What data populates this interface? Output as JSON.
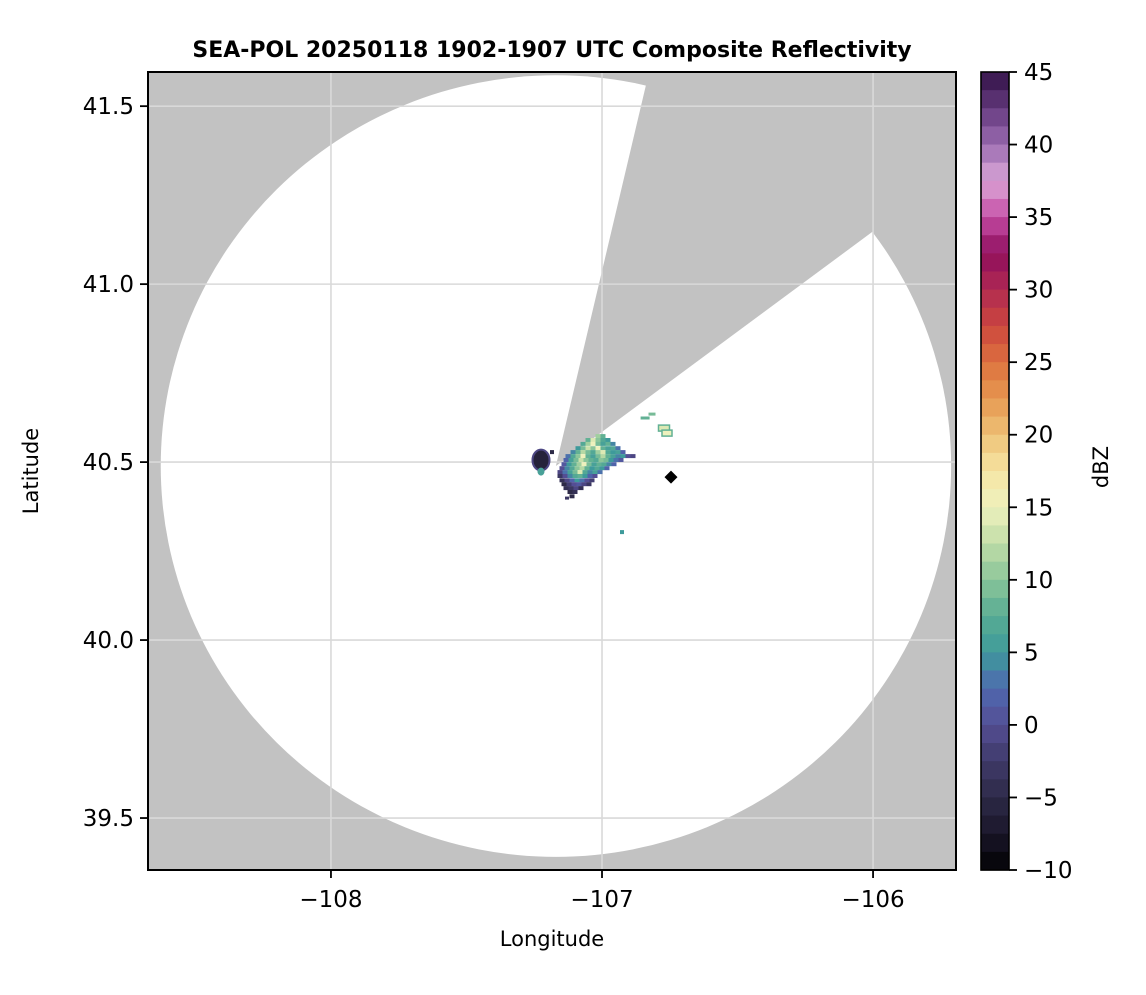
{
  "title": "SEA-POL 20250118 1902-1907 UTC Composite Reflectivity",
  "axes": {
    "xlabel": "Longitude",
    "ylabel": "Latitude",
    "lon_min": -108.675,
    "lon_max": -105.694,
    "lat_min": 39.354,
    "lat_max": 41.596,
    "xticks": [
      {
        "label": "−108",
        "value": -108
      },
      {
        "label": "−107",
        "value": -107
      },
      {
        "label": "−106",
        "value": -106
      }
    ],
    "yticks": [
      {
        "label": "41.5",
        "value": 41.5
      },
      {
        "label": "41.0",
        "value": 41.0
      },
      {
        "label": "40.5",
        "value": 40.5
      },
      {
        "label": "40.0",
        "value": 40.0
      },
      {
        "label": "39.5",
        "value": 39.5
      }
    ]
  },
  "colors": {
    "outside_range": "#c2c2c2",
    "blocked_sector": "#c2c2c2",
    "coverage": "#ffffff",
    "grid": "#d9d9d9",
    "frame": "#000000",
    "marker": "#000000"
  },
  "chart_data": {
    "type": "heatmap",
    "description": "Radar composite reflectivity PPI on lon/lat map",
    "radar": {
      "name": "SEA-POL",
      "lon": -107.17,
      "lat": 40.489,
      "range_lon_deg": 1.458,
      "range_lat_deg": 1.098
    },
    "blocked_sector_azimuth_deg": [
      13.3,
      53.5
    ],
    "site_marker": {
      "shape": "diamond",
      "lon": -106.7454,
      "lat": 40.4579
    },
    "echo_cell_step_lon": 0.01845,
    "echo_rows": [
      {
        "lat": 40.573,
        "lon0": -107.0148,
        "z": [
          11,
          8
        ]
      },
      {
        "lat": 40.562,
        "lon0": -107.0517,
        "z": [
          8,
          14,
          10,
          7,
          5
        ]
      },
      {
        "lat": 40.551,
        "lon0": -107.0701,
        "z": [
          7,
          11,
          15,
          9,
          6,
          8,
          4
        ]
      },
      {
        "lat": 40.539,
        "lon0": -107.0886,
        "z": [
          5,
          9,
          13,
          10,
          15,
          8,
          6,
          7,
          3
        ]
      },
      {
        "lat": 40.528,
        "lon0": -107.107,
        "z": [
          4,
          8,
          12,
          9,
          7,
          11,
          14,
          7,
          5,
          6,
          2
        ]
      },
      {
        "lat": 40.517,
        "lon0": -107.1255,
        "z": [
          3,
          7,
          10,
          15,
          8,
          6,
          9,
          12,
          8,
          6,
          4,
          5,
          0,
          -1
        ]
      },
      {
        "lat": 40.506,
        "lon0": -107.1328,
        "z": [
          2,
          6,
          9,
          13,
          10,
          8,
          7,
          10,
          9,
          5,
          3,
          1
        ]
      },
      {
        "lat": 40.494,
        "lon0": -107.1402,
        "z": [
          1,
          5,
          8,
          11,
          15,
          9,
          6,
          8,
          7,
          4,
          2
        ]
      },
      {
        "lat": 40.483,
        "lon0": -107.1476,
        "z": [
          0,
          4,
          7,
          10,
          12,
          8,
          5,
          7,
          5,
          2
        ]
      },
      {
        "lat": 40.472,
        "lon0": -107.155,
        "z": [
          -1,
          3,
          6,
          9,
          14,
          7,
          4,
          6,
          3
        ]
      },
      {
        "lat": 40.461,
        "lon0": -107.155,
        "z": [
          -3,
          0,
          4,
          7,
          8,
          5,
          2,
          0
        ]
      },
      {
        "lat": 40.449,
        "lon0": -107.1476,
        "z": [
          -4,
          -1,
          2,
          5,
          3,
          0,
          -2
        ]
      },
      {
        "lat": 40.438,
        "lon0": -107.1402,
        "z": [
          -5,
          -2,
          0,
          1,
          -1,
          -3
        ]
      },
      {
        "lat": 40.427,
        "lon0": -107.1328,
        "z": [
          -4,
          -3,
          -1,
          -4
        ]
      },
      {
        "lat": 40.416,
        "lon0": -107.1181,
        "z": [
          -5,
          -4
        ]
      },
      {
        "lat": 40.404,
        "lon0": -107.1107,
        "z": [
          -5
        ]
      }
    ],
    "echo_spots": [
      {
        "lon": -106.841,
        "lat": 40.624,
        "z": 8,
        "w": 9,
        "h": 3
      },
      {
        "lon": -106.8155,
        "lat": 40.6348,
        "z": 9,
        "w": 7,
        "h": 3
      },
      {
        "lon": -106.7712,
        "lat": 40.5955,
        "z": 14,
        "w": 11,
        "h": 6,
        "stroke_z": 8
      },
      {
        "lon": -106.7601,
        "lat": 40.5815,
        "z": 15,
        "w": 10,
        "h": 6,
        "stroke_z": 8
      },
      {
        "lon": -106.9262,
        "lat": 40.3034,
        "z": 5,
        "w": 4,
        "h": 4
      },
      {
        "lon": -107.1292,
        "lat": 40.3989,
        "z": -3,
        "w": 4,
        "h": 3
      },
      {
        "lon": -107.1845,
        "lat": 40.5281,
        "z": -5,
        "w": 4,
        "h": 4
      }
    ],
    "echo_blobs": [
      {
        "lon": -107.2251,
        "lat": 40.5056,
        "w": 17,
        "h": 21,
        "z": -6,
        "stroke_z": -1
      },
      {
        "lon": -107.2251,
        "lat": 40.4733,
        "w": 7,
        "h": 8,
        "z": 6
      }
    ],
    "colorbar": {
      "label": "dBZ",
      "min": -10,
      "max": 45,
      "bands": 44,
      "ticks": [
        {
          "label": "45",
          "value": 45
        },
        {
          "label": "40",
          "value": 40
        },
        {
          "label": "35",
          "value": 35
        },
        {
          "label": "30",
          "value": 30
        },
        {
          "label": "25",
          "value": 25
        },
        {
          "label": "20",
          "value": 20
        },
        {
          "label": "15",
          "value": 15
        },
        {
          "label": "10",
          "value": 10
        },
        {
          "label": "5",
          "value": 5
        },
        {
          "label": "0",
          "value": 0
        },
        {
          "label": "−5",
          "value": -5
        },
        {
          "label": "−10",
          "value": -10
        }
      ],
      "stops": [
        {
          "v": -10.0,
          "c": "#020204"
        },
        {
          "v": -7.5,
          "c": "#1a1629"
        },
        {
          "v": -5.0,
          "c": "#2d2a47"
        },
        {
          "v": -2.5,
          "c": "#3f3a69"
        },
        {
          "v": 0.0,
          "c": "#544e94"
        },
        {
          "v": 2.5,
          "c": "#4f68b0"
        },
        {
          "v": 5.0,
          "c": "#3e9a9b"
        },
        {
          "v": 7.5,
          "c": "#58ac93"
        },
        {
          "v": 10.0,
          "c": "#8bc59a"
        },
        {
          "v": 12.5,
          "c": "#c0dda7"
        },
        {
          "v": 15.0,
          "c": "#eef1bd"
        },
        {
          "v": 17.5,
          "c": "#f6e5a3"
        },
        {
          "v": 20.0,
          "c": "#eec277"
        },
        {
          "v": 22.5,
          "c": "#e69750"
        },
        {
          "v": 25.0,
          "c": "#dd713f"
        },
        {
          "v": 27.5,
          "c": "#cc463e"
        },
        {
          "v": 30.0,
          "c": "#b02a52"
        },
        {
          "v": 32.5,
          "c": "#8e0e5d"
        },
        {
          "v": 35.0,
          "c": "#c54da5"
        },
        {
          "v": 37.5,
          "c": "#dba7d8"
        },
        {
          "v": 40.0,
          "c": "#9a6bb0"
        },
        {
          "v": 42.5,
          "c": "#643a7e"
        },
        {
          "v": 45.0,
          "c": "#331247"
        }
      ]
    }
  }
}
